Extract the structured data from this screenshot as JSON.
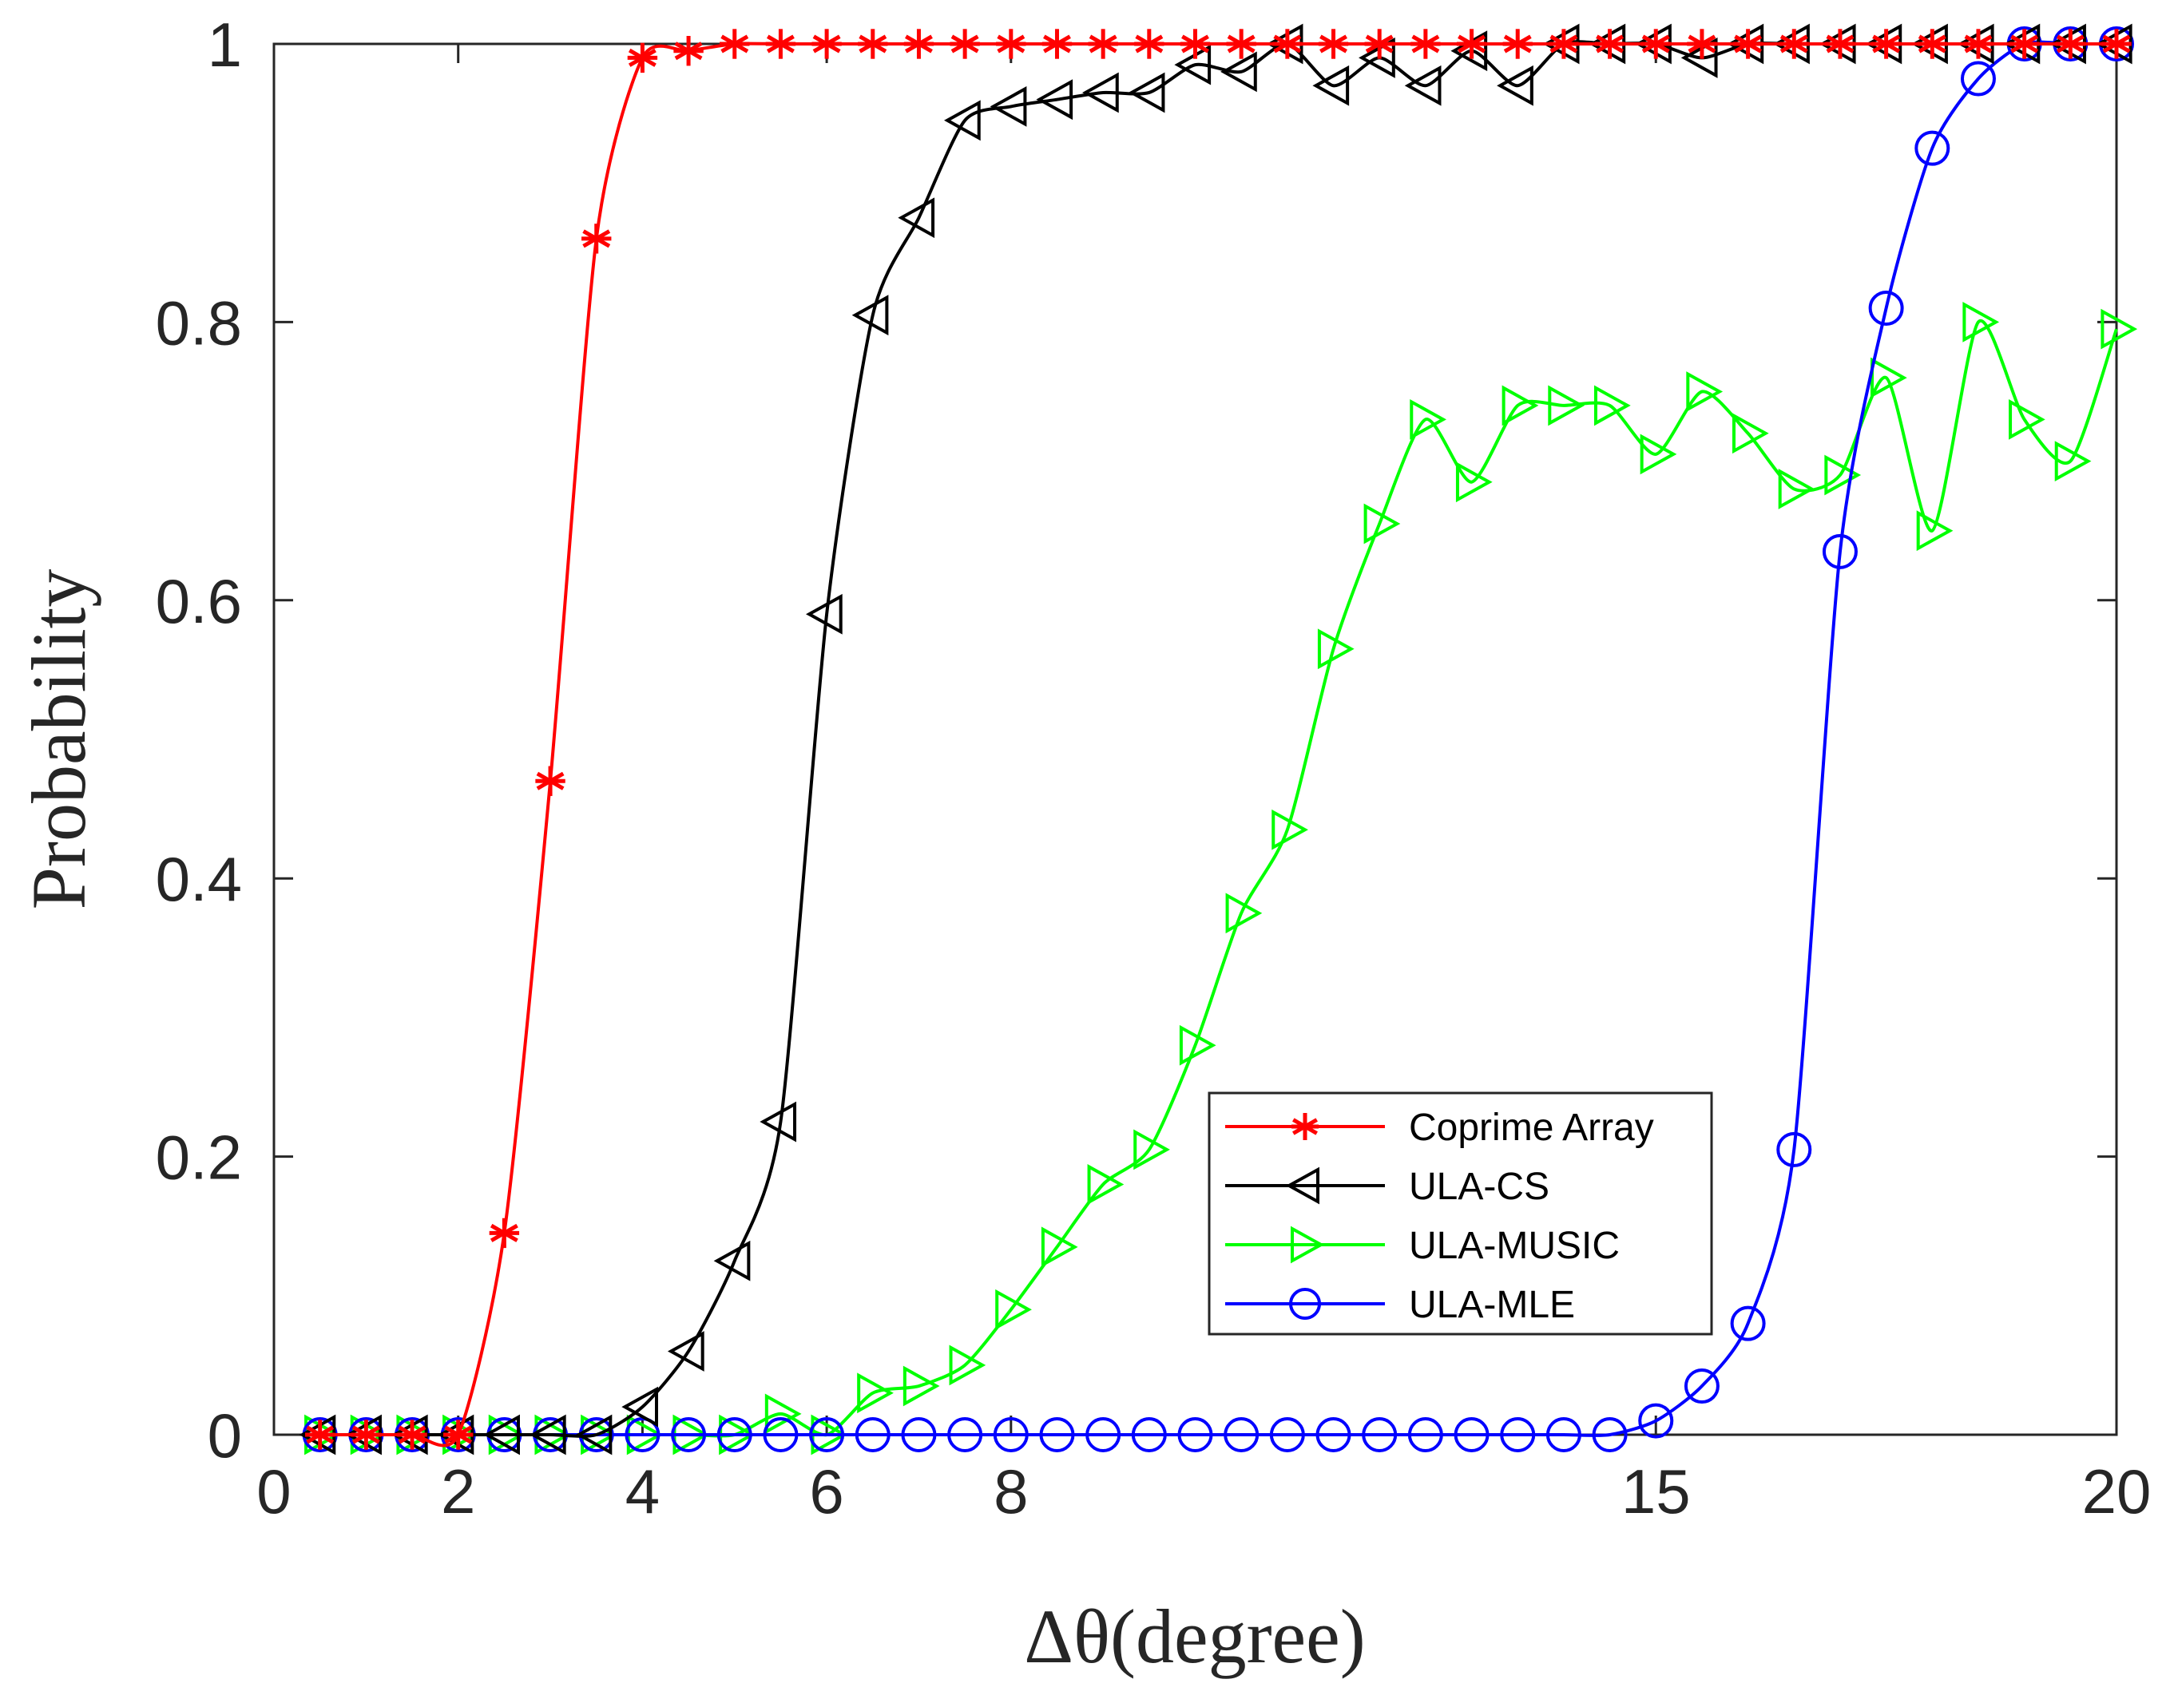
{
  "chart_data": {
    "type": "line",
    "xlabel": "Δθ(degree)",
    "ylabel": "Probability",
    "xticks": [
      {
        "index": 0,
        "label": "0"
      },
      {
        "index": 4,
        "label": "2"
      },
      {
        "index": 8,
        "label": "4"
      },
      {
        "index": 12,
        "label": "6"
      },
      {
        "index": 16,
        "label": "8"
      },
      {
        "index": 30,
        "label": "15"
      },
      {
        "index": 40,
        "label": "20"
      }
    ],
    "yticks": [
      "0",
      "0.2",
      "0.4",
      "0.6",
      "0.8",
      "1"
    ],
    "xlim": [
      0,
      40
    ],
    "ylim": [
      0,
      1
    ],
    "legend_position": "lower-right-center",
    "x_points": [
      1,
      2,
      3,
      4,
      5,
      6,
      7,
      8,
      9,
      10,
      11,
      12,
      13,
      14,
      15,
      16,
      17,
      18,
      19,
      20,
      21,
      22,
      23,
      24,
      25,
      26,
      27,
      28,
      29,
      30,
      31,
      32,
      33,
      34,
      35,
      36,
      37,
      38,
      39,
      40
    ],
    "series": [
      {
        "name": "Coprime Array",
        "color": "#ff0000",
        "marker": "asterisk",
        "values": [
          0,
          0,
          0,
          0,
          0.145,
          0.47,
          0.86,
          0.99,
          0.995,
          1,
          1,
          1,
          1,
          1,
          1,
          1,
          1,
          1,
          1,
          1,
          1,
          1,
          1,
          1,
          1,
          1,
          1,
          1,
          1,
          1,
          1,
          1,
          1,
          1,
          1,
          1,
          1,
          1,
          1,
          1
        ]
      },
      {
        "name": "ULA-CS",
        "color": "#000000",
        "marker": "triangle-left",
        "values": [
          0,
          0,
          0,
          0,
          0,
          0,
          0,
          0.02,
          0.06,
          0.125,
          0.225,
          0.59,
          0.805,
          0.875,
          0.945,
          0.955,
          0.96,
          0.965,
          0.965,
          0.985,
          0.98,
          1,
          0.97,
          0.99,
          0.97,
          0.995,
          0.97,
          1,
          1,
          1,
          0.99,
          1,
          1,
          1,
          1,
          1,
          1,
          1,
          1,
          1
        ]
      },
      {
        "name": "ULA-MUSIC",
        "color": "#00ff00",
        "marker": "triangle-right",
        "values": [
          0,
          0,
          0,
          0,
          0,
          0,
          0,
          0,
          0,
          0,
          0.015,
          0,
          0.03,
          0.035,
          0.05,
          0.09,
          0.135,
          0.18,
          0.205,
          0.28,
          0.375,
          0.435,
          0.565,
          0.655,
          0.73,
          0.685,
          0.74,
          0.74,
          0.74,
          0.705,
          0.75,
          0.72,
          0.68,
          0.69,
          0.76,
          0.65,
          0.8,
          0.73,
          0.7,
          0.795
        ]
      },
      {
        "name": "ULA-MLE",
        "color": "#0000ff",
        "marker": "circle",
        "values": [
          0,
          0,
          0,
          0,
          0,
          0,
          0,
          0,
          0,
          0,
          0,
          0,
          0,
          0,
          0,
          0,
          0,
          0,
          0,
          0,
          0,
          0,
          0,
          0,
          0,
          0,
          0,
          0,
          0,
          0.01,
          0.035,
          0.08,
          0.205,
          0.635,
          0.81,
          0.925,
          0.975,
          1,
          1,
          1
        ]
      }
    ]
  }
}
